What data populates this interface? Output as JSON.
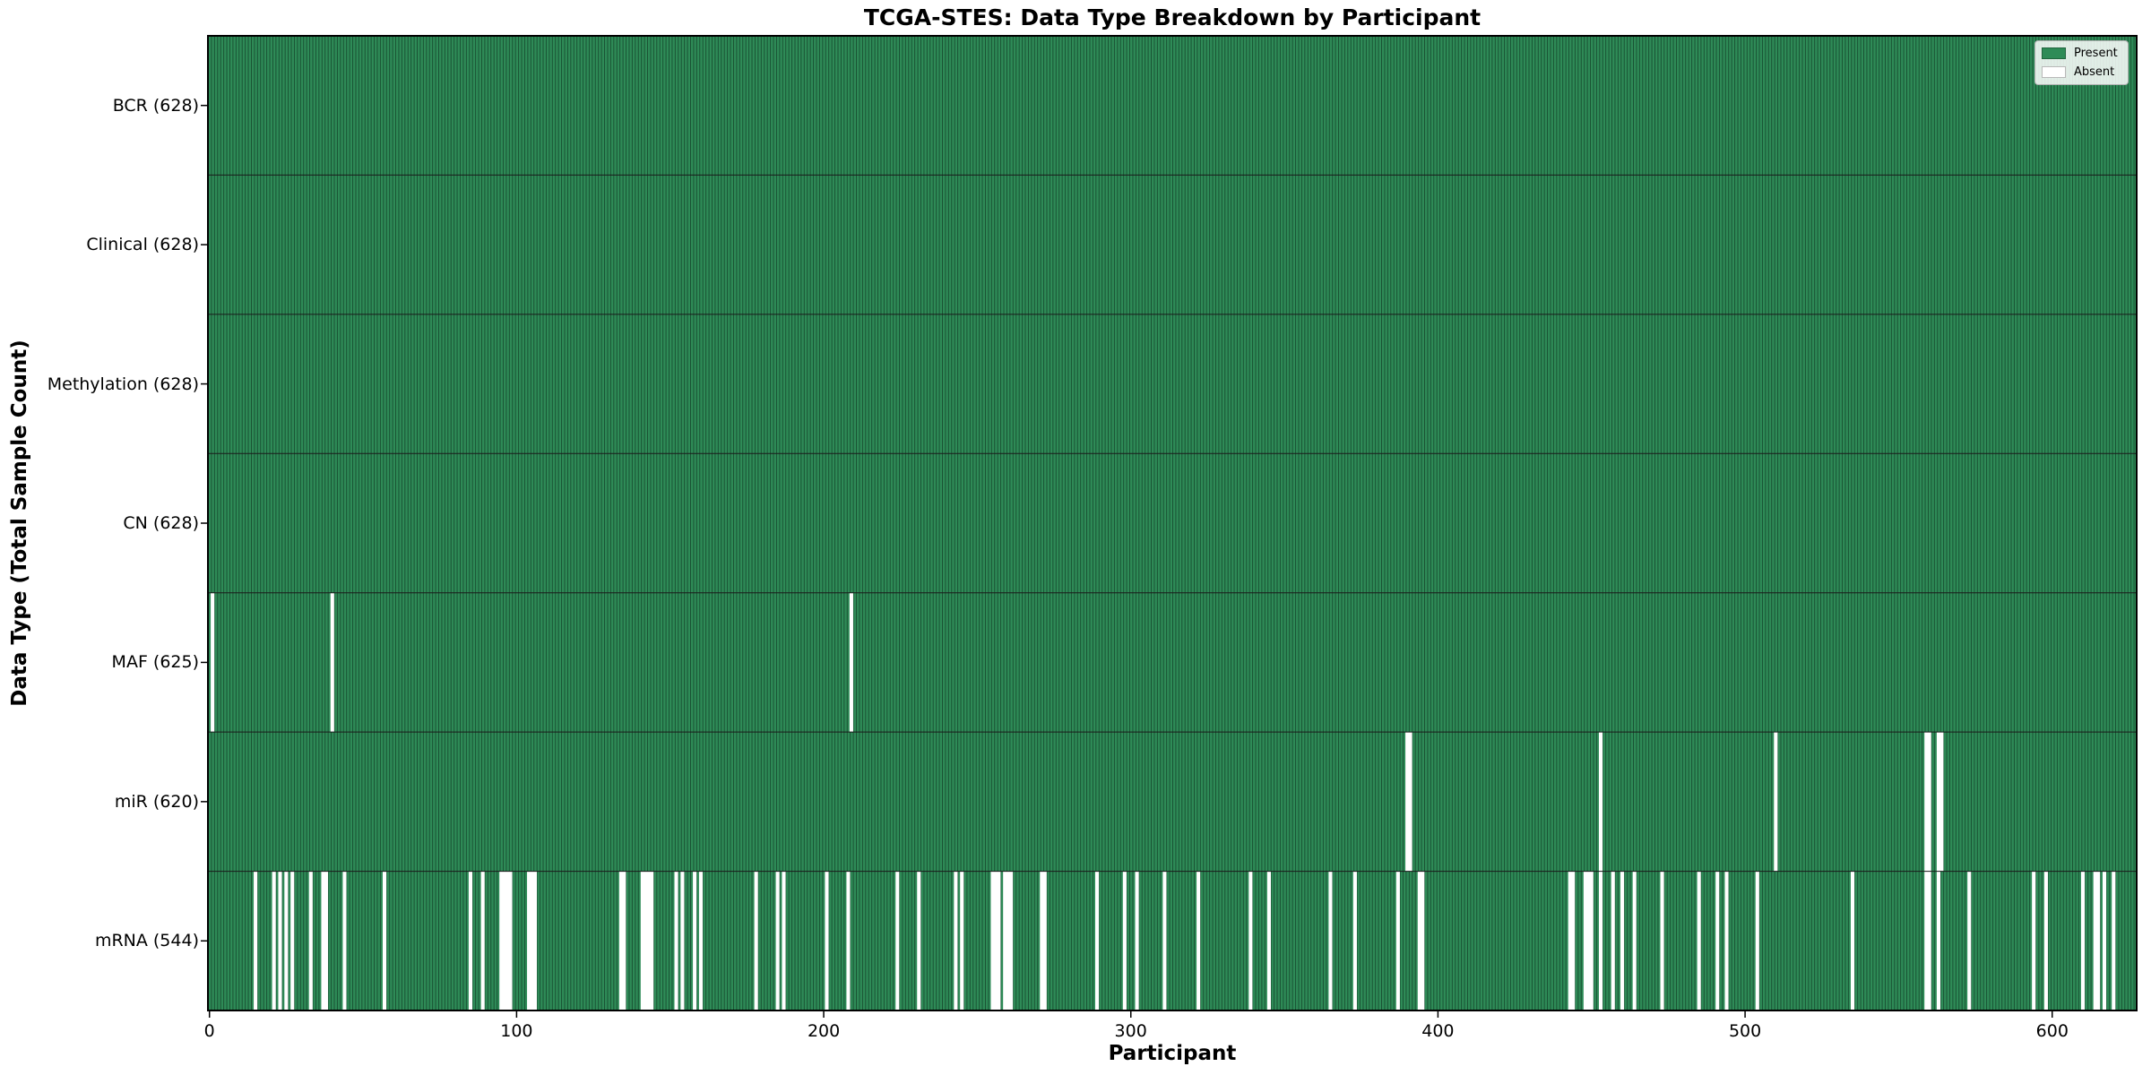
{
  "chart_data": {
    "type": "heatmap",
    "title": "TCGA-STES: Data Type Breakdown by Participant",
    "xlabel": "Participant",
    "ylabel": "Data Type (Total Sample Count)",
    "n_participants": 628,
    "x_axis_range": [
      0,
      628
    ],
    "x_ticks": [
      0,
      100,
      200,
      300,
      400,
      500,
      600
    ],
    "grid": false,
    "legend_position": "upper right",
    "legend": [
      {
        "label": "Present",
        "state": "present"
      },
      {
        "label": "Absent",
        "state": "absent"
      }
    ],
    "colors": {
      "present": "#2E8B57",
      "absent": "#ffffff",
      "bar_edge": "rgba(8,34,21,0.55)",
      "row_divider": "#1a1a1a",
      "axis_border": "#000000"
    },
    "rows": [
      {
        "label": "BCR",
        "count": 628,
        "display": "BCR (628)",
        "absent": []
      },
      {
        "label": "Clinical",
        "count": 628,
        "display": "Clinical (628)",
        "absent": []
      },
      {
        "label": "Methylation",
        "count": 628,
        "display": "Methylation (628)",
        "absent": []
      },
      {
        "label": "CN",
        "count": 628,
        "display": "CN (628)",
        "absent": []
      },
      {
        "label": "MAF",
        "count": 625,
        "display": "MAF (625)",
        "absent": [
          1,
          40,
          209
        ]
      },
      {
        "label": "miR",
        "count": 620,
        "display": "miR (620)",
        "absent": [
          390,
          391,
          453,
          510,
          559,
          560,
          563,
          564
        ]
      },
      {
        "label": "mRNA",
        "count": 544,
        "display": "mRNA (544)",
        "absent": [
          15,
          21,
          23,
          25,
          27,
          33,
          37,
          38,
          44,
          57,
          85,
          89,
          95,
          96,
          97,
          98,
          104,
          105,
          106,
          134,
          135,
          141,
          142,
          143,
          144,
          152,
          154,
          158,
          160,
          178,
          185,
          187,
          201,
          208,
          224,
          231,
          243,
          245,
          255,
          256,
          257,
          259,
          260,
          261,
          271,
          272,
          289,
          298,
          302,
          311,
          322,
          339,
          345,
          365,
          373,
          387,
          394,
          395,
          443,
          444,
          448,
          449,
          450,
          453,
          457,
          460,
          464,
          473,
          485,
          491,
          494,
          504,
          535,
          559,
          560,
          563,
          573,
          594,
          598,
          610,
          614,
          615,
          617,
          620
        ]
      }
    ]
  }
}
